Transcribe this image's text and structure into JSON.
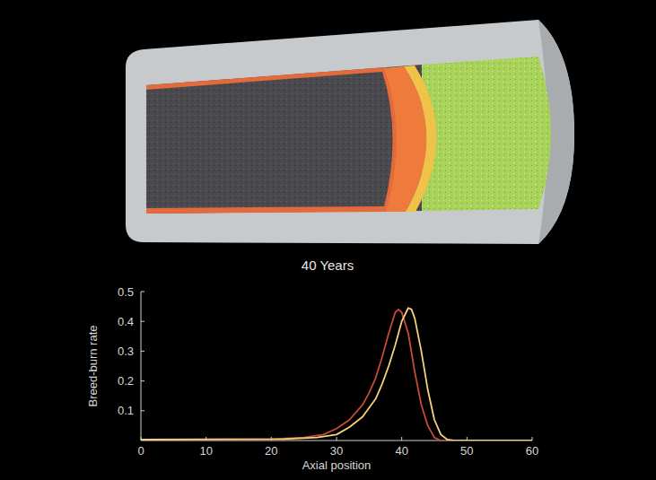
{
  "chart_data": {
    "type": "line",
    "title": "40 Years",
    "x_label": "Axial position",
    "y_label": "Breed-burn rate",
    "xlim": [
      0,
      60
    ],
    "xticks": [
      0,
      10,
      20,
      30,
      40,
      50,
      60
    ],
    "ylim": [
      0,
      0.5
    ],
    "yticks": [
      0.1,
      0.2,
      0.3,
      0.4,
      0.5
    ],
    "grid": false,
    "series": [
      {
        "color": "#c9493a",
        "x": [
          0,
          20,
          25,
          28,
          30,
          32,
          34,
          35,
          36,
          37,
          38,
          39,
          39.5,
          40,
          41,
          42,
          43,
          44,
          45,
          46,
          60
        ],
        "values": [
          0.003,
          0.005,
          0.01,
          0.02,
          0.04,
          0.07,
          0.12,
          0.16,
          0.21,
          0.28,
          0.36,
          0.43,
          0.44,
          0.43,
          0.36,
          0.23,
          0.12,
          0.05,
          0.01,
          0,
          0
        ]
      },
      {
        "color": "#f3d27a",
        "x": [
          0,
          22,
          27,
          30,
          32,
          34,
          36,
          37,
          38,
          39,
          40,
          41,
          41.5,
          42,
          43,
          44,
          45,
          46,
          47,
          48,
          60
        ],
        "values": [
          0.003,
          0.005,
          0.01,
          0.02,
          0.045,
          0.08,
          0.14,
          0.19,
          0.25,
          0.32,
          0.4,
          0.445,
          0.44,
          0.41,
          0.3,
          0.17,
          0.07,
          0.02,
          0.003,
          0,
          0
        ]
      }
    ]
  }
}
